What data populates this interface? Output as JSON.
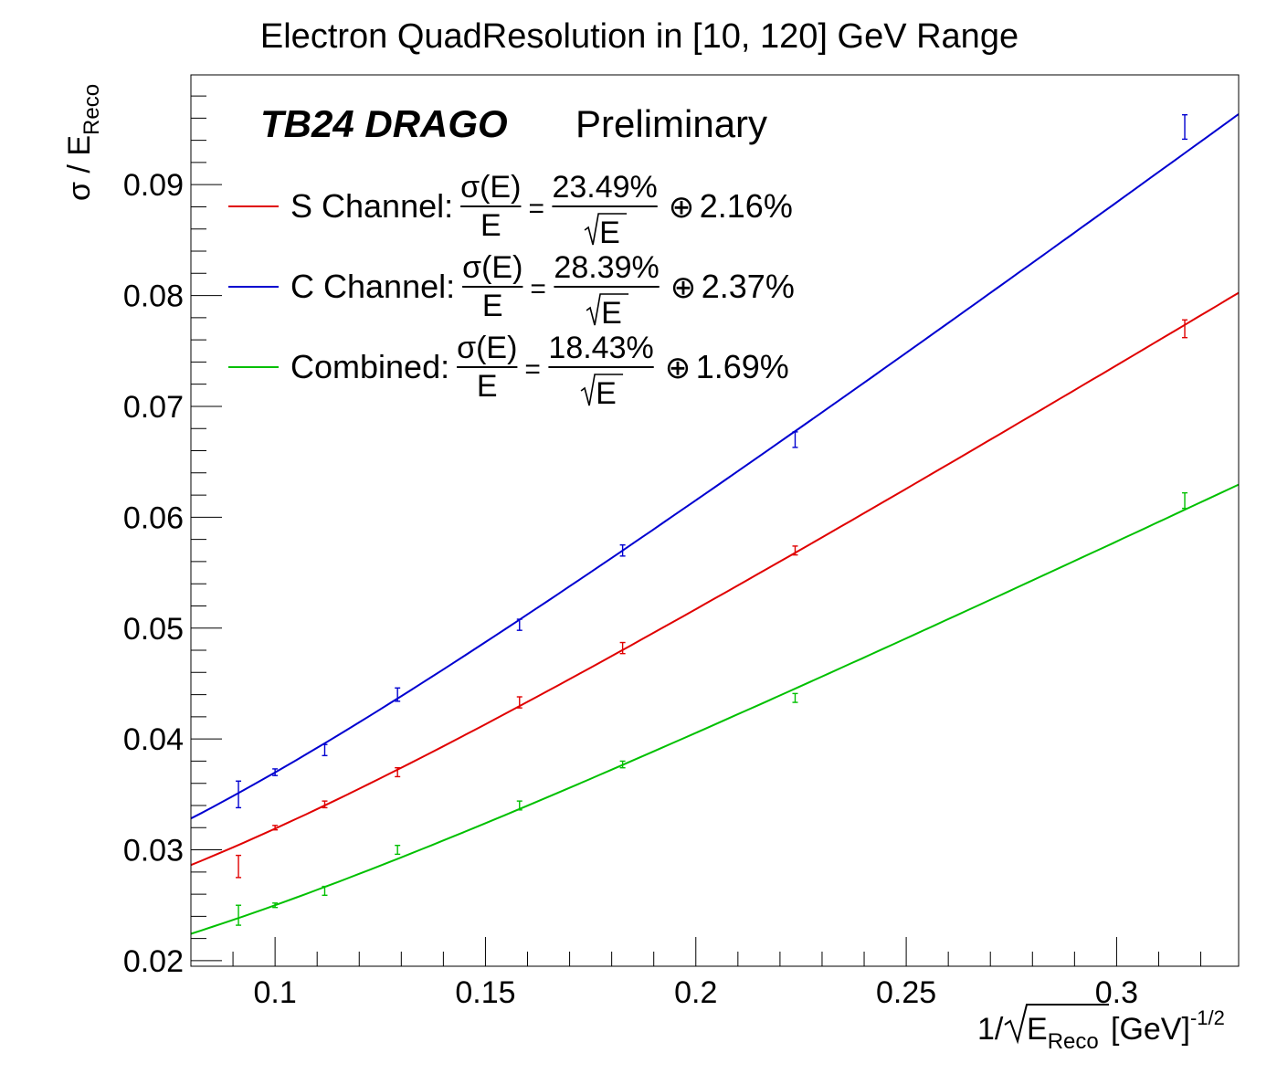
{
  "chart_data": {
    "type": "line",
    "title": "Electron QuadResolution in [10, 120] GeV Range",
    "xlabel": {
      "prefix": "1/",
      "sqrt_base": "E",
      "sqrt_sub": "Reco",
      "unit": "[GeV]",
      "unit_sup": "-1/2"
    },
    "ylabel": {
      "base": "σ / E",
      "sub": "Reco"
    },
    "xlim": [
      0.08,
      0.329
    ],
    "ylim": [
      0.0195,
      0.0999
    ],
    "xticks": [
      {
        "value": 0.1,
        "label": "0.1"
      },
      {
        "value": 0.15,
        "label": "0.15"
      },
      {
        "value": 0.2,
        "label": "0.2"
      },
      {
        "value": 0.25,
        "label": "0.25"
      },
      {
        "value": 0.3,
        "label": "0.3"
      }
    ],
    "yticks": [
      {
        "value": 0.02,
        "label": "0.02"
      },
      {
        "value": 0.03,
        "label": "0.03"
      },
      {
        "value": 0.04,
        "label": "0.04"
      },
      {
        "value": 0.05,
        "label": "0.05"
      },
      {
        "value": 0.06,
        "label": "0.06"
      },
      {
        "value": 0.07,
        "label": "0.07"
      },
      {
        "value": 0.08,
        "label": "0.08"
      },
      {
        "value": 0.09,
        "label": "0.09"
      }
    ],
    "annotation": {
      "experiment": "TB24 DRAGO",
      "status": "Preliminary"
    },
    "x": [
      0.0913,
      0.1,
      0.1118,
      0.1291,
      0.1581,
      0.1826,
      0.2236,
      0.3162
    ],
    "series": [
      {
        "name": "S Channel",
        "color": "#e00000",
        "stochastic": 0.2349,
        "constant": 0.0216,
        "legend": {
          "name": "S Channel:",
          "num": "σ(E)",
          "den": "E",
          "eq": "=",
          "stoch": "23.49%",
          "sqrt_base": "E",
          "oplus": "⊕",
          "const": "2.16%"
        },
        "values": [
          0.0285,
          0.032,
          0.0341,
          0.037,
          0.0433,
          0.0482,
          0.057,
          0.077
        ],
        "errors": [
          0.001,
          0.0002,
          0.0003,
          0.0004,
          0.0005,
          0.0005,
          0.0004,
          0.0008
        ]
      },
      {
        "name": "C Channel",
        "color": "#0000d0",
        "stochastic": 0.2839,
        "constant": 0.0237,
        "legend": {
          "name": "C Channel:",
          "num": "σ(E)",
          "den": "E",
          "eq": "=",
          "stoch": "28.39%",
          "sqrt_base": "E",
          "oplus": "⊕",
          "const": "2.37%"
        },
        "values": [
          0.035,
          0.037,
          0.039,
          0.044,
          0.0503,
          0.057,
          0.067,
          0.0952
        ],
        "errors": [
          0.0012,
          0.0003,
          0.0005,
          0.0006,
          0.0005,
          0.0005,
          0.0007,
          0.0011
        ]
      },
      {
        "name": "Combined",
        "color": "#00c000",
        "stochastic": 0.1843,
        "constant": 0.0169,
        "legend": {
          "name": "Combined:",
          "num": "σ(E)",
          "den": "E",
          "eq": "=",
          "stoch": "18.43%",
          "sqrt_base": "E",
          "oplus": "⊕",
          "const": "1.69%"
        },
        "values": [
          0.0241,
          0.025,
          0.0263,
          0.03,
          0.034,
          0.0377,
          0.0437,
          0.0615
        ],
        "errors": [
          0.0009,
          0.0002,
          0.0004,
          0.0004,
          0.0004,
          0.0003,
          0.0004,
          0.0007
        ]
      }
    ]
  }
}
